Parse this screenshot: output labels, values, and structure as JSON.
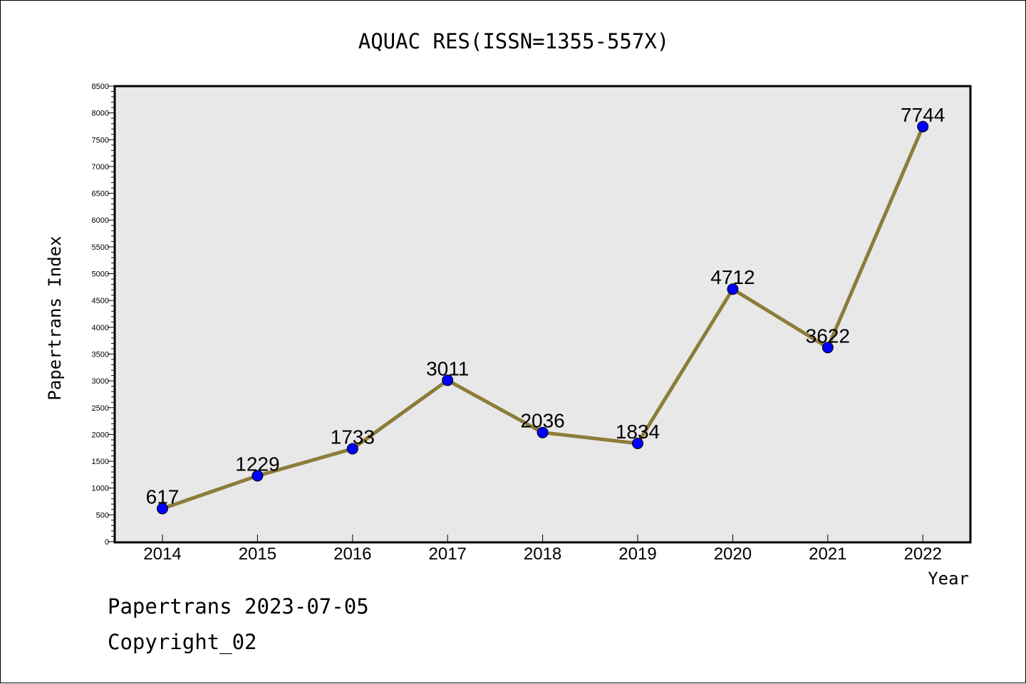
{
  "chart_data": {
    "type": "line",
    "title": "AQUAC RES(ISSN=1355-557X)",
    "xlabel": "Year",
    "ylabel": "Papertrans Index",
    "categories": [
      "2014",
      "2015",
      "2016",
      "2017",
      "2018",
      "2019",
      "2020",
      "2021",
      "2022"
    ],
    "values": [
      617,
      1229,
      1733,
      3011,
      2036,
      1834,
      4712,
      3622,
      7744
    ],
    "data_labels": [
      "617",
      "1229",
      "1733",
      "3011",
      "2036",
      "1834",
      "4712",
      "3622",
      "7744"
    ],
    "ylim": [
      0,
      8500
    ],
    "yticks": [
      "0",
      "500",
      "1000",
      "1500",
      "2000",
      "2500",
      "3000",
      "3500",
      "4000",
      "4500",
      "5000",
      "5500",
      "6000",
      "6500",
      "7000",
      "7500",
      "8000",
      "8500"
    ],
    "grid": false,
    "colors": {
      "line": "#8B7D3A",
      "marker": "#0000FF",
      "plot_background": "#E8E8E8"
    }
  },
  "footer": {
    "line1": "Papertrans 2023-07-05",
    "line2": "Copyright_02"
  }
}
